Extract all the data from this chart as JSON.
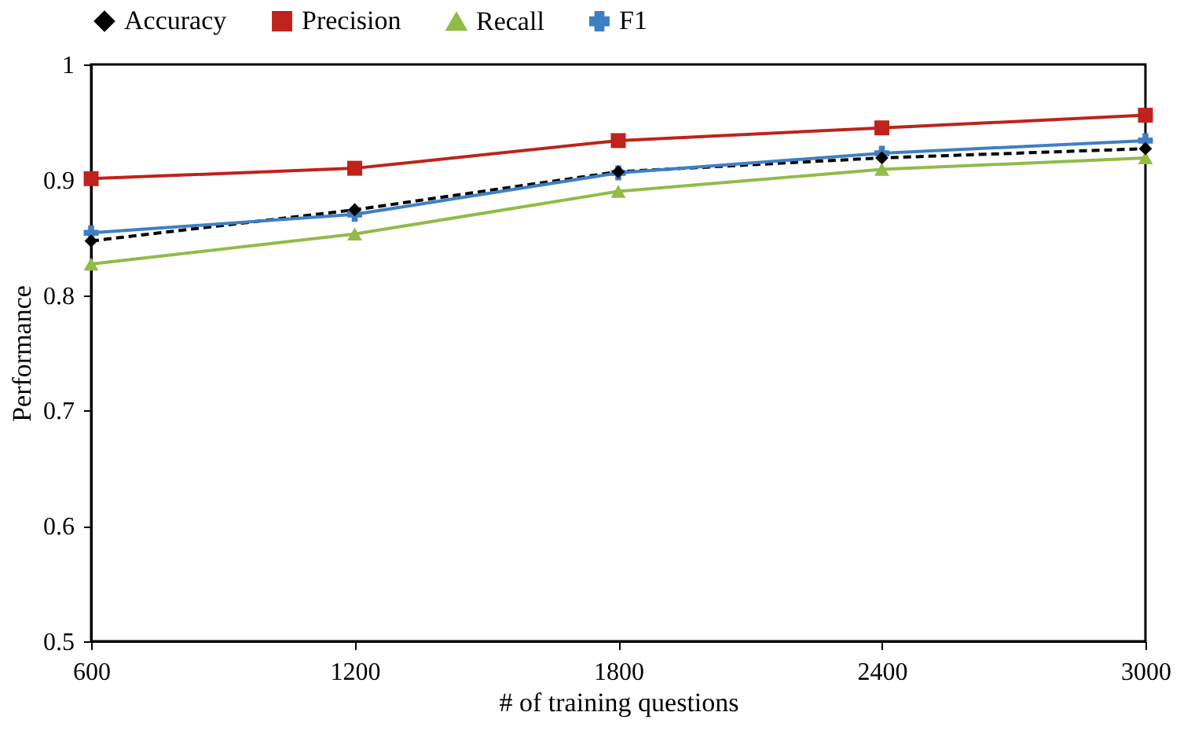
{
  "chart_data": {
    "type": "line",
    "xlabel": "# of training questions",
    "ylabel": "Performance",
    "x": [
      600,
      1200,
      1800,
      2400,
      3000
    ],
    "xlim": [
      600,
      3000
    ],
    "xticks": [
      600,
      1200,
      1800,
      2400,
      3000
    ],
    "ylim": [
      0.5,
      1
    ],
    "yticks": [
      0.5,
      0.6,
      0.7,
      0.8,
      0.9,
      1
    ],
    "grid": false,
    "legend": "top",
    "series": [
      {
        "name": "Accuracy",
        "color": "#000000",
        "marker": "diamond",
        "line_style": "dashed",
        "values": [
          0.847,
          0.874,
          0.907,
          0.919,
          0.927
        ]
      },
      {
        "name": "Precision",
        "color": "#c0221c",
        "marker": "square",
        "line_style": "solid",
        "values": [
          0.901,
          0.91,
          0.934,
          0.945,
          0.956
        ]
      },
      {
        "name": "Recall",
        "color": "#92bb48",
        "marker": "triangle",
        "line_style": "solid",
        "values": [
          0.827,
          0.853,
          0.89,
          0.909,
          0.919
        ]
      },
      {
        "name": "F1",
        "color": "#3f7fc4",
        "marker": "cross",
        "line_style": "solid",
        "values": [
          0.854,
          0.87,
          0.906,
          0.923,
          0.934
        ]
      }
    ]
  }
}
